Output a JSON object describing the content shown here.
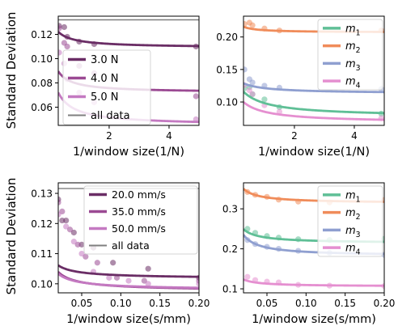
{
  "figure": {
    "ylabel": "Standard Deviation"
  },
  "chart_data": [
    {
      "type": "scatter",
      "panel": "top-left",
      "xlabel": "1/window size(1/N)",
      "xlim": [
        0.3,
        5.0
      ],
      "ylim": [
        0.045,
        0.135
      ],
      "xticks": [
        2,
        4
      ],
      "yticks": [
        0.06,
        0.08,
        0.1,
        0.12
      ],
      "ytick_labels": [
        "0.06",
        "0.08",
        "0.10",
        "0.12"
      ],
      "legend_position": "center-left",
      "reference_line": {
        "label": "all data",
        "value": 0.132,
        "color": "#7f7f7f"
      },
      "series": [
        {
          "name": "3.0 N",
          "color": "#6a2d65",
          "curve": {
            "type": "decay",
            "a": 0.109,
            "b": 0.0072,
            "c": 0.25,
            "d": 1.0
          },
          "points": [
            [
              0.33,
              0.127
            ],
            [
              0.5,
              0.126
            ],
            [
              0.6,
              0.118
            ],
            [
              1.0,
              0.114
            ],
            [
              1.5,
              0.112
            ],
            [
              4.9,
              0.11
            ]
          ]
        },
        {
          "name": "4.0 N",
          "color": "#9b4a93",
          "curve": {
            "type": "decay",
            "a": 0.072,
            "b": 0.0081,
            "c": 0.16,
            "d": 1.0
          },
          "points": [
            [
              0.33,
              0.125
            ],
            [
              0.5,
              0.113
            ],
            [
              0.6,
              0.11
            ],
            [
              1.0,
              0.094
            ],
            [
              1.5,
              0.088
            ],
            [
              4.9,
              0.069
            ]
          ]
        },
        {
          "name": "5.0 N",
          "color": "#c479c1",
          "curve": {
            "type": "decay",
            "a": 0.045,
            "b": 0.0149,
            "c": 0.25,
            "d": 1.0
          },
          "points": [
            [
              0.33,
              0.105
            ],
            [
              0.5,
              0.096
            ],
            [
              0.6,
              0.083
            ],
            [
              1.0,
              0.072
            ],
            [
              1.5,
              0.064
            ],
            [
              4.9,
              0.05
            ]
          ]
        }
      ]
    },
    {
      "type": "scatter",
      "panel": "top-right",
      "xlabel": "1/window size(1/N)",
      "xlim": [
        0.3,
        5.0
      ],
      "ylim": [
        0.064,
        0.232
      ],
      "xticks": [
        2,
        4
      ],
      "yticks": [
        0.1,
        0.15,
        0.2
      ],
      "ytick_labels": [
        "0.10",
        "0.15",
        "0.20"
      ],
      "legend_position": "upper-right",
      "series": [
        {
          "name": "m1",
          "color": "#5fbf96",
          "curve": {
            "type": "decay",
            "a": 0.077,
            "b": 0.033,
            "c": 0.55,
            "d": 1.0
          },
          "points": [
            [
              0.33,
              0.121
            ],
            [
              0.5,
              0.123
            ],
            [
              0.6,
              0.112
            ],
            [
              1.0,
              0.104
            ],
            [
              1.5,
              0.092
            ],
            [
              4.9,
              0.082
            ]
          ]
        },
        {
          "name": "m2",
          "color": "#f08c5a",
          "curve": {
            "type": "decay",
            "a": 0.207,
            "b": 0.004,
            "c": 0.15,
            "d": 1.0
          },
          "points": [
            [
              0.33,
              0.22
            ],
            [
              0.5,
              0.222
            ],
            [
              0.6,
              0.218
            ],
            [
              1.0,
              0.213
            ],
            [
              1.5,
              0.21
            ],
            [
              4.9,
              0.21
            ]
          ]
        },
        {
          "name": "m3",
          "color": "#8f9fd0",
          "curve": {
            "type": "decay",
            "a": 0.113,
            "b": 0.0125,
            "c": 0.5,
            "d": 1.0
          },
          "points": [
            [
              0.33,
              0.15
            ],
            [
              0.5,
              0.135
            ],
            [
              0.6,
              0.13
            ],
            [
              1.0,
              0.125
            ],
            [
              1.5,
              0.122
            ],
            [
              4.9,
              0.12
            ]
          ]
        },
        {
          "name": "m4",
          "color": "#e58fd0",
          "curve": {
            "type": "decay",
            "a": 0.068,
            "b": 0.0255,
            "c": 0.5,
            "d": 1.0
          },
          "points": [
            [
              0.33,
              0.126
            ],
            [
              0.5,
              0.118
            ],
            [
              0.6,
              0.112
            ],
            [
              1.0,
              0.095
            ],
            [
              1.5,
              0.085
            ],
            [
              4.9,
              0.075
            ]
          ]
        }
      ],
      "legend_items": [
        {
          "symbol": "m",
          "subscript": "1"
        },
        {
          "symbol": "m",
          "subscript": "2"
        },
        {
          "symbol": "m",
          "subscript": "3"
        },
        {
          "symbol": "m",
          "subscript": "4"
        }
      ]
    },
    {
      "type": "scatter",
      "panel": "bottom-left",
      "xlabel": "1/window size(s/mm)",
      "xlim": [
        0.02,
        0.2
      ],
      "ylim": [
        0.097,
        0.1335
      ],
      "xticks": [
        0.05,
        0.1,
        0.15,
        0.2
      ],
      "xtick_labels": [
        "0.05",
        "0.10",
        "0.15",
        "0.20"
      ],
      "yticks": [
        0.1,
        0.11,
        0.12,
        0.13
      ],
      "ytick_labels": [
        "0.10",
        "0.11",
        "0.12",
        "0.13"
      ],
      "legend_position": "upper-right",
      "reference_line": {
        "label": "all data",
        "value": 0.1316,
        "color": "#7f7f7f"
      },
      "series": [
        {
          "name": "20.0 mm/s",
          "color": "#6a2d65",
          "curve": {
            "type": "decay",
            "a": 0.1016,
            "b": 0.000198,
            "c": 0.0,
            "d": 0.8
          },
          "points": [
            [
              0.02,
              0.128
            ],
            [
              0.025,
              0.121
            ],
            [
              0.03,
              0.121
            ],
            [
              0.04,
              0.117
            ],
            [
              0.05,
              0.113
            ],
            [
              0.065,
              0.112
            ],
            [
              0.09,
              0.107
            ],
            [
              0.135,
              0.105
            ],
            [
              0.2,
              0.102
            ]
          ]
        },
        {
          "name": "35.0 mm/s",
          "color": "#9b4a93",
          "curve": {
            "type": "decay",
            "a": 0.0974,
            "b": 0.000286,
            "c": 0.0,
            "d": 0.8
          },
          "points": [
            [
              0.02,
              0.127
            ],
            [
              0.025,
              0.124
            ],
            [
              0.035,
              0.118
            ],
            [
              0.045,
              0.113
            ],
            [
              0.055,
              0.109
            ],
            [
              0.07,
              0.107
            ],
            [
              0.095,
              0.102
            ],
            [
              0.13,
              0.101
            ],
            [
              0.2,
              0.101
            ]
          ]
        },
        {
          "name": "50.0 mm/s",
          "color": "#c479c1",
          "curve": {
            "type": "decay",
            "a": 0.0978,
            "b": 0.000242,
            "c": 0.0,
            "d": 0.8
          },
          "points": [
            [
              0.02,
              0.123
            ],
            [
              0.03,
              0.119
            ],
            [
              0.04,
              0.114
            ],
            [
              0.05,
              0.11
            ],
            [
              0.065,
              0.104
            ],
            [
              0.085,
              0.102
            ],
            [
              0.11,
              0.101
            ],
            [
              0.135,
              0.1
            ],
            [
              0.2,
              0.1
            ]
          ]
        }
      ]
    },
    {
      "type": "scatter",
      "panel": "bottom-right",
      "xlabel": "1/window size(s/mm)",
      "xlim": [
        0.02,
        0.2
      ],
      "ylim": [
        0.09,
        0.365
      ],
      "xticks": [
        0.05,
        0.1,
        0.15,
        0.2
      ],
      "xtick_labels": [
        "0.05",
        "0.10",
        "0.15",
        "0.20"
      ],
      "yticks": [
        0.1,
        0.2,
        0.3
      ],
      "ytick_labels": [
        "0.1",
        "0.2",
        "0.3"
      ],
      "legend_position": "upper-right",
      "series": [
        {
          "name": "m1",
          "color": "#5fbf96",
          "curve": {
            "type": "decay",
            "a": 0.214,
            "b": 0.0007,
            "c": 0.0,
            "d": 1.0
          },
          "points": [
            [
              0.025,
              0.25
            ],
            [
              0.035,
              0.24
            ],
            [
              0.05,
              0.232
            ],
            [
              0.065,
              0.228
            ],
            [
              0.09,
              0.224
            ],
            [
              0.13,
              0.222
            ],
            [
              0.2,
              0.225
            ]
          ]
        },
        {
          "name": "m2",
          "color": "#f08c5a",
          "curve": {
            "type": "decay",
            "a": 0.314,
            "b": 0.00072,
            "c": 0.0,
            "d": 1.0
          },
          "points": [
            [
              0.025,
              0.342
            ],
            [
              0.035,
              0.335
            ],
            [
              0.05,
              0.33
            ],
            [
              0.065,
              0.323
            ],
            [
              0.09,
              0.318
            ],
            [
              0.13,
              0.316
            ],
            [
              0.2,
              0.322
            ]
          ]
        },
        {
          "name": "m3",
          "color": "#8f9fd0",
          "curve": {
            "type": "decay",
            "a": 0.182,
            "b": 0.00106,
            "c": 0.0,
            "d": 1.0
          },
          "points": [
            [
              0.025,
              0.222
            ],
            [
              0.035,
              0.212
            ],
            [
              0.05,
              0.205
            ],
            [
              0.065,
              0.2
            ],
            [
              0.09,
              0.195
            ],
            [
              0.13,
              0.19
            ],
            [
              0.2,
              0.185
            ]
          ]
        },
        {
          "name": "m4",
          "color": "#e58fd0",
          "curve": {
            "type": "decay",
            "a": 0.106,
            "b": 0.00035,
            "c": 0.0,
            "d": 1.0
          },
          "points": [
            [
              0.025,
              0.13
            ],
            [
              0.035,
              0.122
            ],
            [
              0.05,
              0.118
            ],
            [
              0.065,
              0.116
            ],
            [
              0.09,
              0.11
            ],
            [
              0.13,
              0.108
            ],
            [
              0.2,
              0.107
            ]
          ]
        }
      ],
      "legend_items": [
        {
          "symbol": "m",
          "subscript": "1"
        },
        {
          "symbol": "m",
          "subscript": "2"
        },
        {
          "symbol": "m",
          "subscript": "3"
        },
        {
          "symbol": "m",
          "subscript": "4"
        }
      ]
    }
  ]
}
